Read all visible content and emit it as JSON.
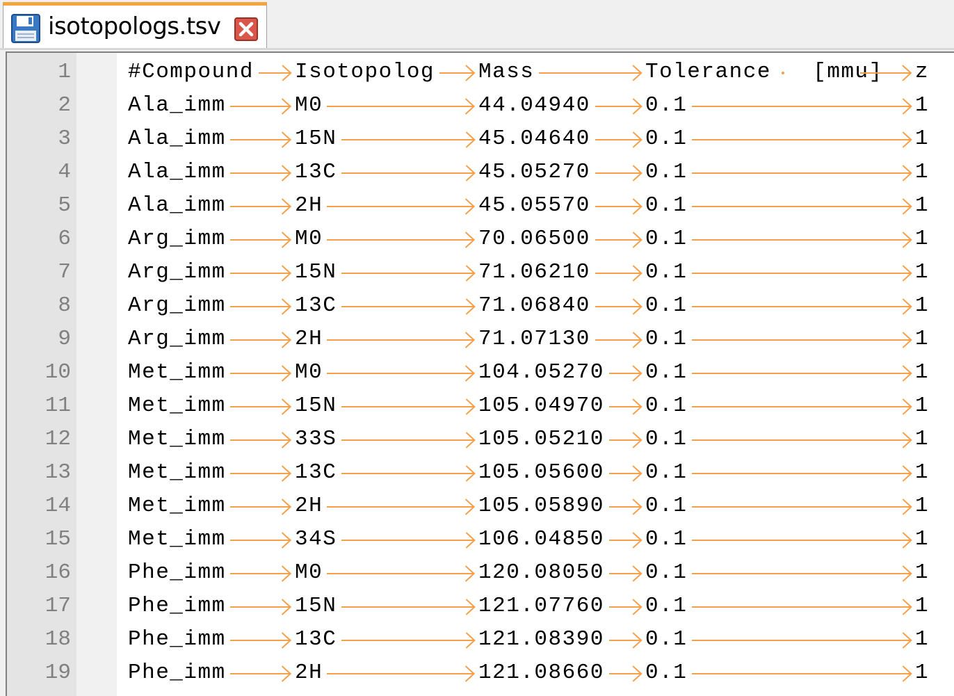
{
  "tab": {
    "filename": "isotopologs.tsv",
    "icon": "floppy-save-icon",
    "close_icon": "close-icon",
    "accent_color": "#f5a53c",
    "close_color": "#c0392b"
  },
  "editor": {
    "tab_marker_color": "#f5a04a",
    "header": [
      "#Compound",
      "Isotopolog",
      "Mass",
      "Tolerance [mmu]",
      "z"
    ],
    "rows": [
      [
        "Ala_imm",
        "M0",
        "44.04940",
        "0.1",
        "1"
      ],
      [
        "Ala_imm",
        "15N",
        "45.04640",
        "0.1",
        "1"
      ],
      [
        "Ala_imm",
        "13C",
        "45.05270",
        "0.1",
        "1"
      ],
      [
        "Ala_imm",
        "2H",
        "45.05570",
        "0.1",
        "1"
      ],
      [
        "Arg_imm",
        "M0",
        "70.06500",
        "0.1",
        "1"
      ],
      [
        "Arg_imm",
        "15N",
        "71.06210",
        "0.1",
        "1"
      ],
      [
        "Arg_imm",
        "13C",
        "71.06840",
        "0.1",
        "1"
      ],
      [
        "Arg_imm",
        "2H",
        "71.07130",
        "0.1",
        "1"
      ],
      [
        "Met_imm",
        "M0",
        "104.05270",
        "0.1",
        "1"
      ],
      [
        "Met_imm",
        "15N",
        "105.04970",
        "0.1",
        "1"
      ],
      [
        "Met_imm",
        "33S",
        "105.05210",
        "0.1",
        "1"
      ],
      [
        "Met_imm",
        "13C",
        "105.05600",
        "0.1",
        "1"
      ],
      [
        "Met_imm",
        "2H",
        "105.05890",
        "0.1",
        "1"
      ],
      [
        "Met_imm",
        "34S",
        "106.04850",
        "0.1",
        "1"
      ],
      [
        "Phe_imm",
        "M0",
        "120.08050",
        "0.1",
        "1"
      ],
      [
        "Phe_imm",
        "15N",
        "121.07760",
        "0.1",
        "1"
      ],
      [
        "Phe_imm",
        "13C",
        "121.08390",
        "0.1",
        "1"
      ],
      [
        "Phe_imm",
        "2H",
        "121.08660",
        "0.1",
        "1"
      ]
    ]
  }
}
